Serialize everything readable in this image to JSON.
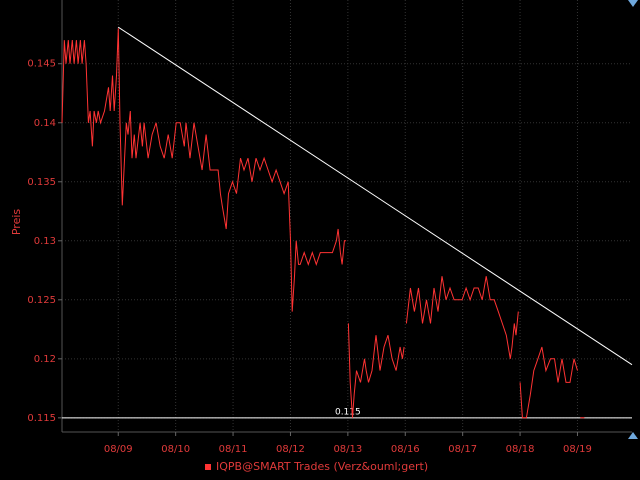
{
  "chart_data": {
    "type": "line",
    "y_label": "Preis",
    "x": [
      -0.98,
      -0.94,
      -0.91,
      -0.87,
      -0.84,
      -0.8,
      -0.77,
      -0.73,
      -0.7,
      -0.66,
      -0.63,
      -0.59,
      -0.56,
      -0.52,
      -0.49,
      -0.45,
      -0.42,
      -0.38,
      -0.35,
      -0.31,
      -0.24,
      -0.17,
      -0.14,
      -0.1,
      -0.07,
      -0.03,
      0,
      0.03,
      0.07,
      0.1,
      0.14,
      0.17,
      0.21,
      0.24,
      0.28,
      0.31,
      0.38,
      0.42,
      0.45,
      0.52,
      0.59,
      0.66,
      0.73,
      0.8,
      0.87,
      0.94,
      1.01,
      1.08,
      1.15,
      1.18,
      1.25,
      1.32,
      1.39,
      1.46,
      1.53,
      1.6,
      1.67,
      1.74,
      1.78,
      1.81,
      1.88,
      1.92,
      1.99,
      2.06,
      2.13,
      2.19,
      2.26,
      2.33,
      2.4,
      2.47,
      2.54,
      2.61,
      2.68,
      2.75,
      2.82,
      2.89,
      2.96,
      3.0,
      3.03,
      3.07,
      3.1,
      3.14,
      3.17,
      3.24,
      3.31,
      3.38,
      3.45,
      3.52,
      3.59,
      3.66,
      3.73,
      3.8,
      3.83,
      3.87,
      3.9,
      3.94,
      3.97,
      4.0,
      4.01,
      4.04,
      4.08,
      4.11,
      4.15,
      4.22,
      4.29,
      4.32,
      4.36,
      4.42,
      4.49,
      4.56,
      4.63,
      4.7,
      4.77,
      4.84,
      4.91,
      4.95,
      4.98,
      5.0,
      5.02,
      5.09,
      5.16,
      5.23,
      5.3,
      5.37,
      5.44,
      5.5,
      5.57,
      5.64,
      5.71,
      5.78,
      5.85,
      5.92,
      5.99,
      6.06,
      6.13,
      6.2,
      6.27,
      6.34,
      6.41,
      6.48,
      6.55,
      6.62,
      6.69,
      6.76,
      6.83,
      6.86,
      6.9,
      6.93,
      6.97,
      6.99,
      7.0,
      7.04,
      7.11,
      7.18,
      7.24,
      7.31,
      7.38,
      7.45,
      7.53,
      7.6,
      7.66,
      7.73,
      7.8,
      7.87,
      7.94,
      8.0,
      8.02,
      8.05,
      8.12
    ],
    "series": [
      {
        "name": "IQPB@SMART Trades (Verz&ouml;gert)",
        "color": "#ff3333",
        "values": [
          0.14,
          0.147,
          0.145,
          0.147,
          0.145,
          0.147,
          0.145,
          0.147,
          0.145,
          0.147,
          0.145,
          0.147,
          0.145,
          0.14,
          0.141,
          0.138,
          0.141,
          0.14,
          0.141,
          0.14,
          0.141,
          0.143,
          0.141,
          0.144,
          0.141,
          0.144,
          0.148,
          0.14,
          0.133,
          0.136,
          0.14,
          0.139,
          0.141,
          0.137,
          0.139,
          0.137,
          0.14,
          0.138,
          0.14,
          0.137,
          0.139,
          0.14,
          0.138,
          0.137,
          0.139,
          0.137,
          0.14,
          0.14,
          0.138,
          0.14,
          0.137,
          0.14,
          0.138,
          0.136,
          0.139,
          0.136,
          0.136,
          0.136,
          0.134,
          0.133,
          0.131,
          0.134,
          0.135,
          0.134,
          0.137,
          0.136,
          0.137,
          0.135,
          0.137,
          0.136,
          0.137,
          0.136,
          0.135,
          0.136,
          0.135,
          0.134,
          0.135,
          0.13,
          0.124,
          0.127,
          0.13,
          0.128,
          0.128,
          0.129,
          0.128,
          0.129,
          0.128,
          0.129,
          0.129,
          0.129,
          0.129,
          0.13,
          0.131,
          0.129,
          0.128,
          0.13,
          0.13,
          null,
          0.123,
          0.118,
          0.115,
          0.117,
          0.119,
          0.118,
          0.12,
          0.119,
          0.118,
          0.119,
          0.122,
          0.119,
          0.121,
          0.122,
          0.12,
          0.119,
          0.121,
          0.12,
          0.121,
          null,
          0.123,
          0.126,
          0.124,
          0.126,
          0.123,
          0.125,
          0.123,
          0.126,
          0.124,
          0.127,
          0.125,
          0.126,
          0.125,
          0.125,
          0.125,
          0.126,
          0.125,
          0.126,
          0.126,
          0.125,
          0.127,
          0.125,
          0.125,
          0.124,
          0.123,
          0.122,
          0.12,
          0.121,
          0.123,
          0.122,
          0.124,
          null,
          0.118,
          0.115,
          0.115,
          0.117,
          0.119,
          0.12,
          0.121,
          0.119,
          0.12,
          0.12,
          0.118,
          0.12,
          0.118,
          0.118,
          0.12,
          0.119,
          null,
          0.115,
          0.115
        ]
      }
    ],
    "trend_line": {
      "color": "#ffffff",
      "x": [
        0,
        8.95
      ],
      "y": [
        0.1481,
        0.1195
      ]
    },
    "hline": {
      "y": 0.115,
      "label": "0.115",
      "color": "#ffffff"
    },
    "xlim": [
      -0.98,
      8.95
    ],
    "xticks": [
      {
        "value": 0,
        "label": "08/09"
      },
      {
        "value": 1,
        "label": "08/10"
      },
      {
        "value": 2,
        "label": "08/11"
      },
      {
        "value": 3,
        "label": "08/12"
      },
      {
        "value": 4,
        "label": "08/13"
      },
      {
        "value": 5,
        "label": "08/16"
      },
      {
        "value": 6,
        "label": "08/17"
      },
      {
        "value": 7,
        "label": "08/18"
      },
      {
        "value": 8,
        "label": "08/19"
      }
    ],
    "ylim": [
      0.1138,
      0.1504
    ],
    "yticks": [
      0.115,
      0.12,
      0.125,
      0.13,
      0.135,
      0.14,
      0.145
    ],
    "grid": true
  }
}
